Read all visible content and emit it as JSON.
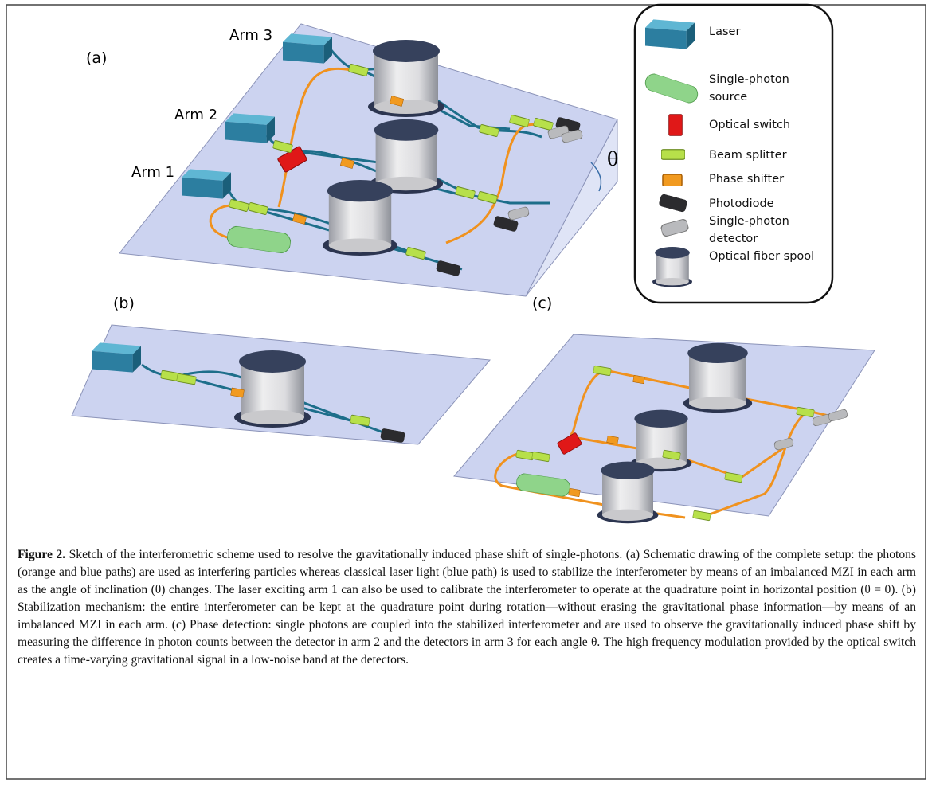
{
  "panel_a": {
    "label": "(a)",
    "arms": [
      "Arm 3",
      "Arm 2",
      "Arm 1"
    ],
    "angle": "θ"
  },
  "legend": {
    "items": [
      "Laser",
      "Single-photon source",
      "Optical switch",
      "Beam splitter",
      "Phase shifter",
      "Photodiode",
      "Single-photon detector",
      "Optical fiber spool"
    ]
  },
  "panel_b": {
    "label": "(b)"
  },
  "panel_c": {
    "label": "(c)"
  },
  "caption": {
    "label": "Figure 2.",
    "text": "Sketch of the interferometric scheme used to resolve the gravitationally induced phase shift of single-photons. (a) Schematic drawing of the complete setup: the photons (orange and blue paths) are used as interfering particles whereas classical laser light (blue path) is used to stabilize the interferometer by means of an imbalanced MZI in each arm as the angle of inclination (θ) changes. The laser exciting arm 1 can also be used to calibrate the interferometer to operate at the quadrature point in horizontal position (θ = 0). (b) Stabilization mechanism: the entire interferometer can be kept at the quadrature point during rotation—without erasing the gravitational phase information—by means of an imbalanced MZI in each arm. (c) Phase detection: single photons are coupled into the stabilized interferometer and are used to observe the gravitationally induced phase shift by measuring the difference in photon counts between the detector in arm 2 and the detectors in arm 3 for each angle θ. The high frequency modulation provided by the optical switch creates a time-varying gravitational signal in a low-noise band at the detectors."
  }
}
